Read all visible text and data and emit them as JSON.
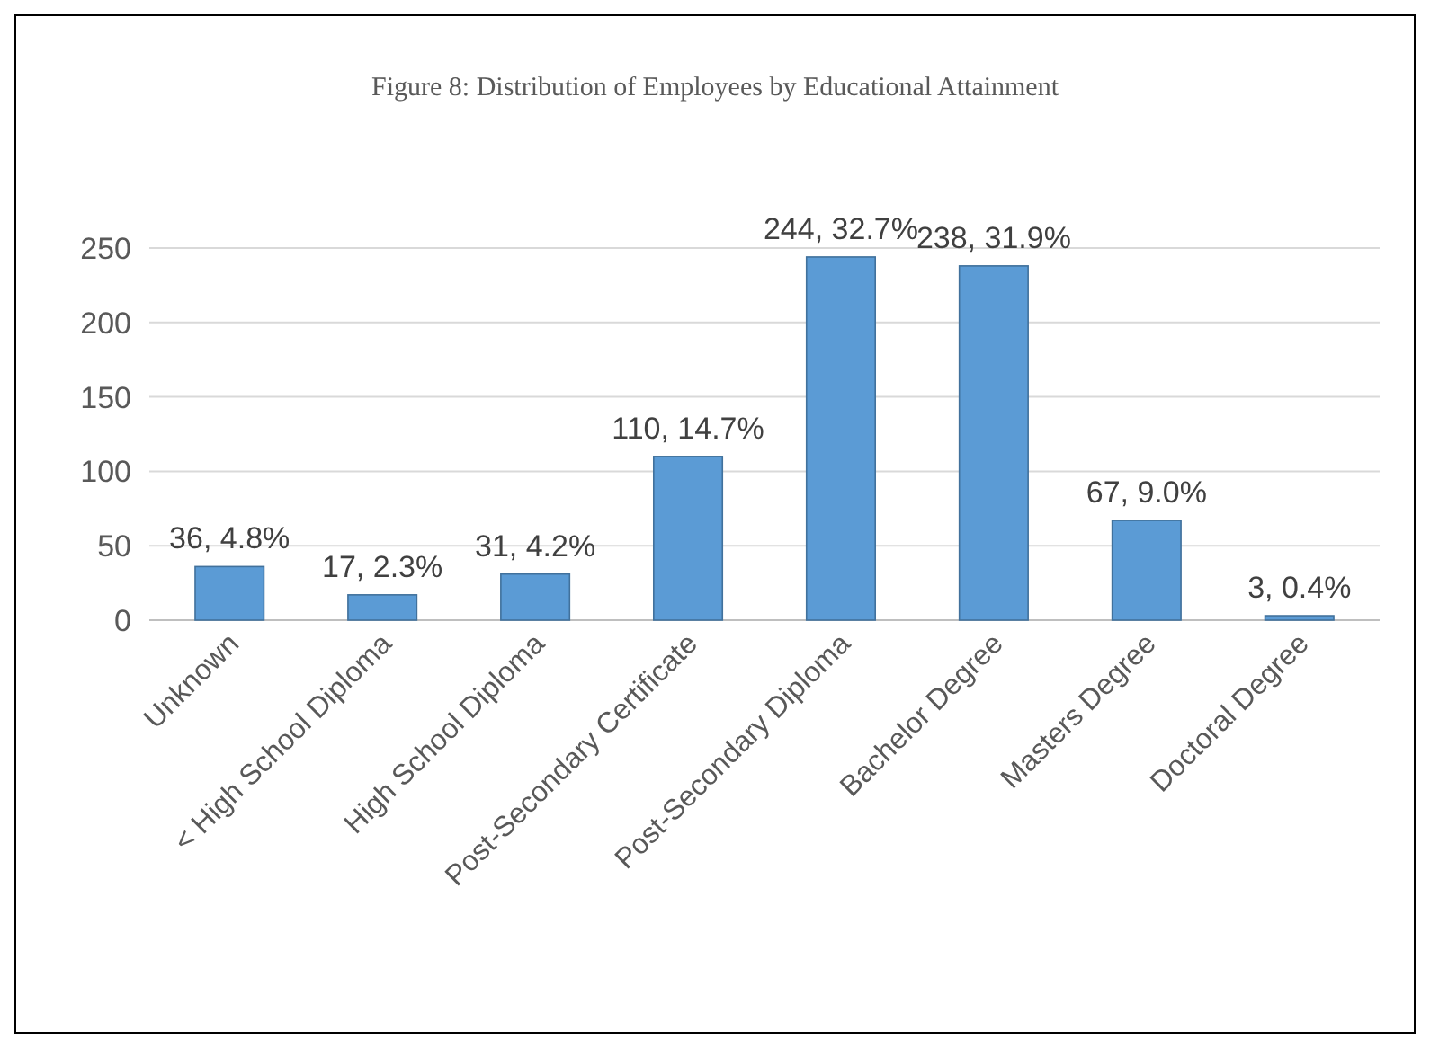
{
  "chart_data": {
    "type": "bar",
    "title": "Figure 8: Distribution of Employees by Educational Attainment",
    "categories": [
      "Unknown",
      "< High School Diploma",
      "High School Diploma",
      "Post-Secondary Certificate",
      "Post-Secondary Diploma",
      "Bachelor Degree",
      "Masters Degree",
      "Doctoral Degree"
    ],
    "values": [
      36,
      17,
      31,
      110,
      244,
      238,
      67,
      3
    ],
    "value_labels": [
      "36, 4.8%",
      "17, 2.3%",
      "31, 4.2%",
      "110, 14.7%",
      "244, 32.7%",
      "238, 31.9%",
      "67, 9.0%",
      "3, 0.4%"
    ],
    "color": "#5b9bd5",
    "ylim": [
      0,
      250
    ],
    "yticks": [
      0,
      50,
      100,
      150,
      200,
      250
    ],
    "grid": "y"
  }
}
